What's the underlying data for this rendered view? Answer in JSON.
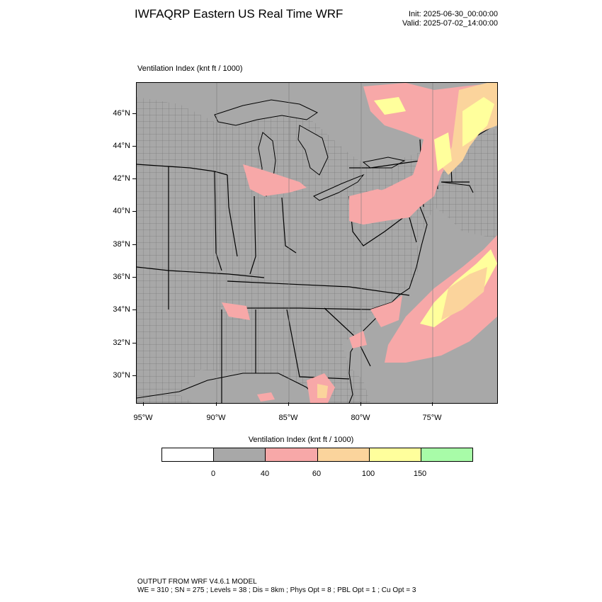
{
  "header": {
    "title": "IWFAQRP Eastern US Real Time WRF",
    "init": "Init: 2025-06-30_00:00:00",
    "valid": "Valid: 2025-07-02_14:00:00"
  },
  "map": {
    "label": "Ventilation Index   (knt ft / 1000)",
    "lat_labels": [
      "46°N",
      "44°N",
      "42°N",
      "40°N",
      "38°N",
      "36°N",
      "34°N",
      "32°N",
      "30°N"
    ],
    "lon_labels": [
      "95°W",
      "90°W",
      "85°W",
      "80°W",
      "75°W"
    ],
    "colors": {
      "land": "#a8a8a8",
      "ocean": "#a8a8a8",
      "pink": "#f7a8a8",
      "orange": "#fbd49c",
      "yellow": "#ffff9c",
      "outline": "#000000"
    }
  },
  "legend": {
    "title": "Ventilation Index  (knt ft / 1000)",
    "colors": [
      "#ffffff",
      "#a8a8a8",
      "#f7a8a8",
      "#fbd49c",
      "#ffff9c",
      "#a8fca8"
    ],
    "labels": [
      "0",
      "40",
      "60",
      "100",
      "150"
    ]
  },
  "footer": {
    "line1": "OUTPUT FROM WRF V4.6.1 MODEL",
    "line2": "WE = 310 ; SN = 275 ; Levels = 38 ; Dis = 8km ; Phys Opt = 8 ; PBL Opt = 1 ; Cu Opt = 3"
  }
}
